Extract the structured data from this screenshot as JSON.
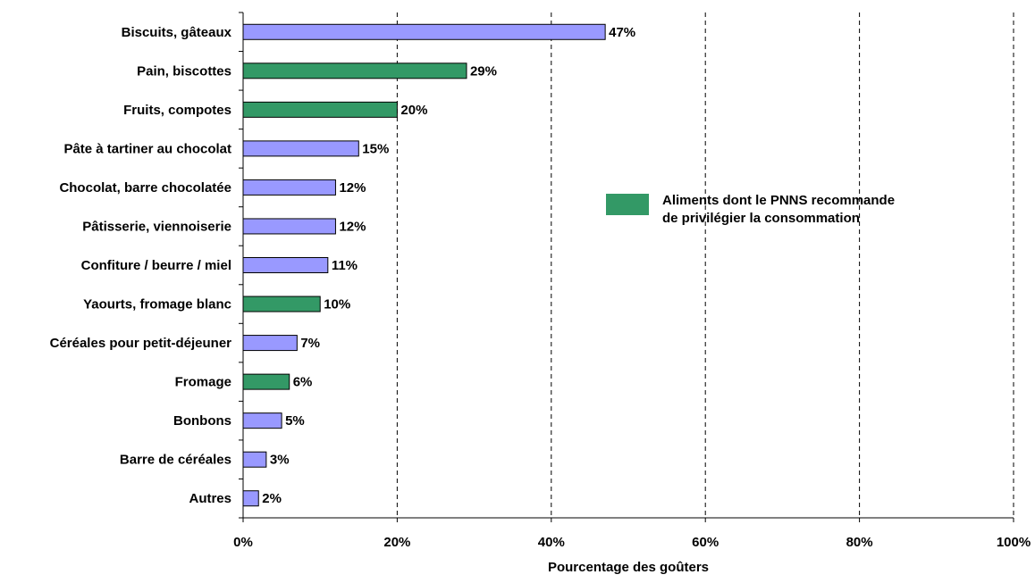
{
  "chart_data": {
    "type": "bar",
    "orientation": "horizontal",
    "categories": [
      "Biscuits, gâteaux",
      "Pain, biscottes",
      "Fruits, compotes",
      "Pâte à tartiner au chocolat",
      "Chocolat, barre chocolatée",
      "Pâtisserie, viennoiserie",
      "Confiture / beurre / miel",
      "Yaourts, fromage blanc",
      "Céréales pour petit-déjeuner",
      "Fromage",
      "Bonbons",
      "Barre de céréales",
      "Autres"
    ],
    "values": [
      47,
      29,
      20,
      15,
      12,
      12,
      11,
      10,
      7,
      6,
      5,
      3,
      2
    ],
    "value_labels": [
      "47%",
      "29%",
      "20%",
      "15%",
      "12%",
      "12%",
      "11%",
      "10%",
      "7%",
      "6%",
      "5%",
      "3%",
      "2%"
    ],
    "recommended": [
      false,
      true,
      true,
      false,
      false,
      false,
      false,
      true,
      false,
      true,
      false,
      false,
      false
    ],
    "xlabel": "Pourcentage des goûters",
    "xlim": [
      0,
      100
    ],
    "xticks": [
      0,
      20,
      40,
      60,
      80,
      100
    ],
    "xtick_labels": [
      "0%",
      "20%",
      "40%",
      "60%",
      "80%",
      "100%"
    ],
    "grid": "vertical dashed",
    "legend": {
      "position": "right",
      "entries": [
        {
          "label_lines": [
            "Aliments dont le PNNS recommande",
            "de privilégier la consommation"
          ],
          "color": "#339966"
        }
      ]
    },
    "colors": {
      "default_bar": "#9999ff",
      "recommended_bar": "#339966",
      "bar_outline": "#000000",
      "grid": "#000000"
    }
  }
}
